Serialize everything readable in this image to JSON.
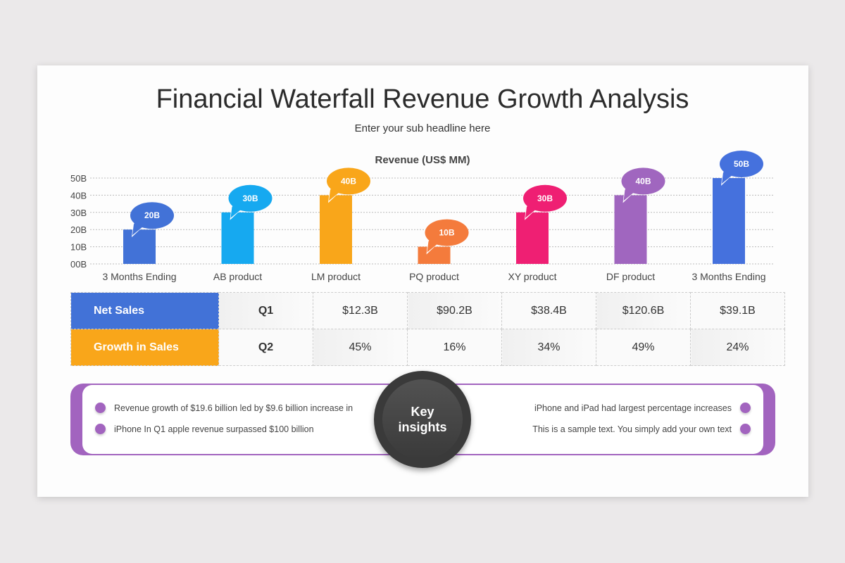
{
  "title": "Financial Waterfall Revenue Growth Analysis",
  "subtitle": "Enter your sub headline here",
  "chart_data": {
    "type": "bar",
    "title": "Revenue (US$ MM)",
    "categories": [
      "3 Months Ending",
      "AB product",
      "LM product",
      "PQ product",
      "XY product",
      "DF product",
      "3 Months Ending"
    ],
    "values": [
      20,
      30,
      40,
      10,
      30,
      40,
      50
    ],
    "data_labels": [
      "20B",
      "30B",
      "40B",
      "10B",
      "30B",
      "40B",
      "50B"
    ],
    "colors": [
      "#4272d7",
      "#16a9f0",
      "#f9a61a",
      "#f47b3c",
      "#ef1f73",
      "#a066bf",
      "#4571dd"
    ],
    "yticks": [
      "00B",
      "10B",
      "20B",
      "30B",
      "40B",
      "50B"
    ],
    "ylim": [
      0,
      50
    ],
    "grid": true
  },
  "table": {
    "rows": [
      {
        "label": "Net Sales",
        "color": "#4272d7",
        "period": "Q1",
        "values": [
          "$12.3B",
          "$90.2B",
          "$38.4B",
          "$120.6B",
          "$39.1B"
        ]
      },
      {
        "label": "Growth in Sales",
        "color": "#f9a61a",
        "period": "Q2",
        "values": [
          "45%",
          "16%",
          "34%",
          "49%",
          "24%"
        ]
      }
    ]
  },
  "insights": {
    "center": [
      "Key",
      "insights"
    ],
    "left": [
      "Revenue growth of $19.6 billion led by $9.6 billion increase in",
      "iPhone In Q1 apple revenue surpassed $100 billion"
    ],
    "right": [
      "iPhone and iPad had largest percentage increases",
      "This is a sample text. You simply add your own text"
    ]
  }
}
